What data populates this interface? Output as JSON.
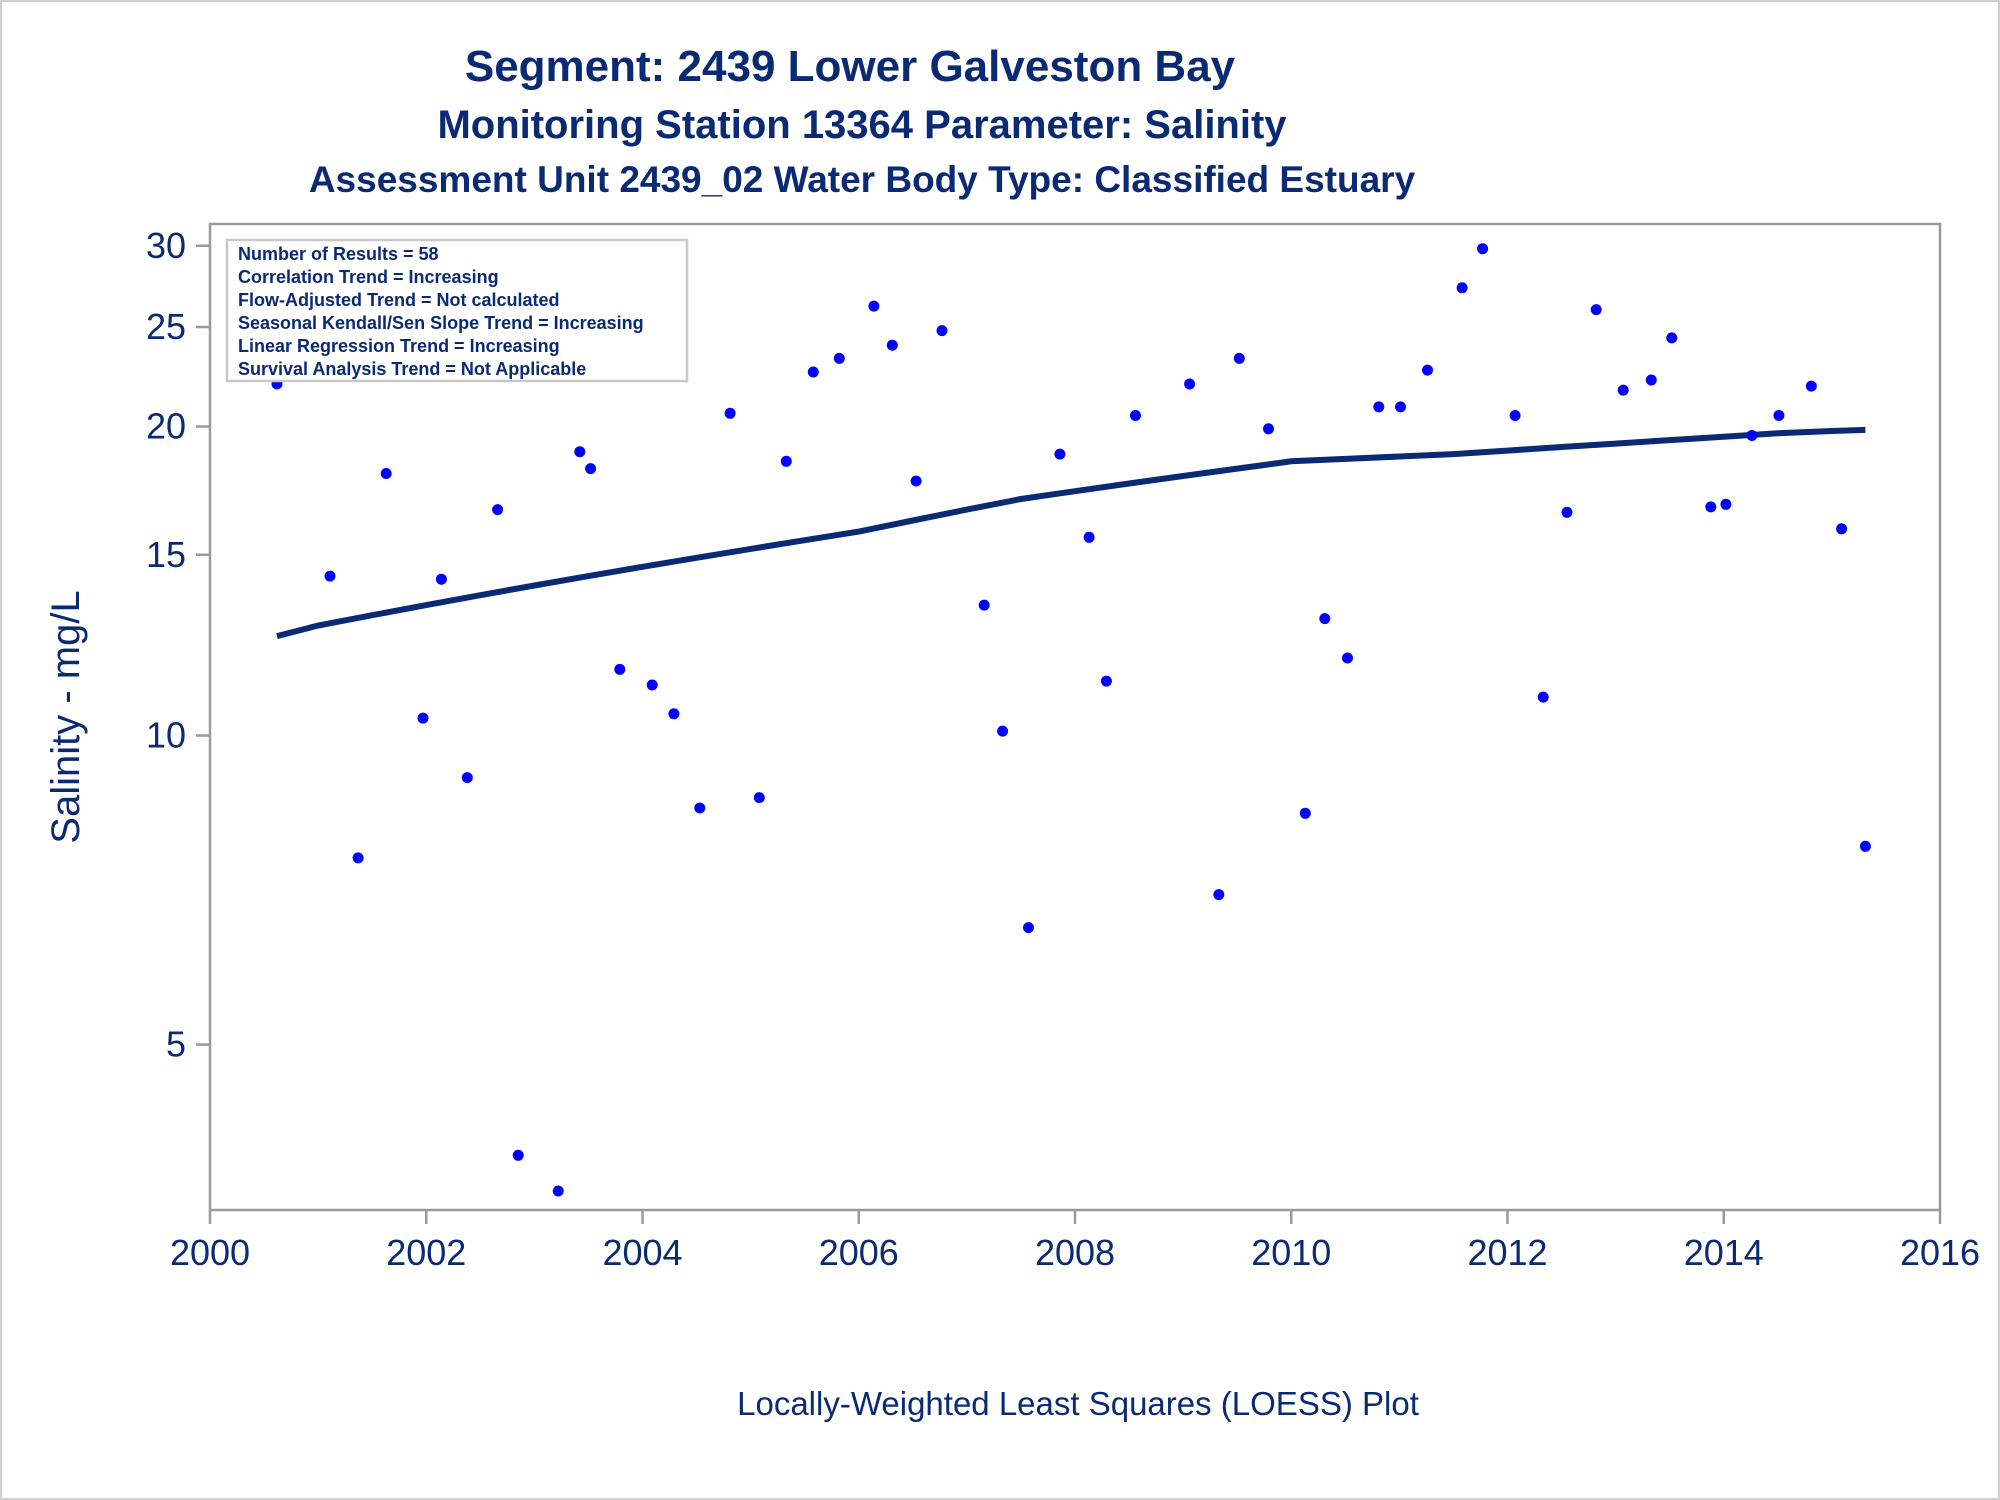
{
  "titles": {
    "line1": "Segment: 2439  Lower Galveston Bay",
    "line2": "Monitoring Station 13364 Parameter: Salinity",
    "line3": "Assessment Unit 2439_02   Water Body Type: Classified Estuary"
  },
  "stats_box": [
    "Number of Results = 58",
    "Correlation Trend = Increasing",
    "Flow-Adjusted Trend = Not calculated",
    "Seasonal Kendall/Sen Slope Trend = Increasing",
    "Linear Regression Trend = Increasing",
    "Survival Analysis Trend = Not Applicable"
  ],
  "footnote": "Locally-Weighted Least Squares (LOESS) Plot",
  "colors": {
    "points": "#0000ff",
    "loess_line": "#0a2a73",
    "text": "#0a2a73",
    "frame": "#9a9a9a"
  },
  "chart_data": {
    "type": "scatter",
    "title": "Segment: 2439  Lower Galveston Bay",
    "subtitle": "Monitoring Station 13364 Parameter: Salinity",
    "xlabel": "",
    "ylabel": "Salinity - mg/L",
    "y_scale": "log",
    "xlim": [
      2000,
      2016
    ],
    "ylim": [
      3.45,
      31.5
    ],
    "x_ticks": [
      2000,
      2002,
      2004,
      2006,
      2008,
      2010,
      2012,
      2014,
      2016
    ],
    "y_ticks": [
      5,
      10,
      15,
      20,
      25,
      30
    ],
    "grid": false,
    "series": [
      {
        "kind": "points",
        "x": [
          2000.62,
          2001.11,
          2001.37,
          2001.63,
          2001.97,
          2002.14,
          2002.38,
          2002.66,
          2002.85,
          2003.22,
          2003.42,
          2003.52,
          2003.79,
          2004.09,
          2004.29,
          2004.53,
          2004.81,
          2005.08,
          2005.33,
          2005.58,
          2005.82,
          2006.14,
          2006.31,
          2006.53,
          2006.77,
          2007.16,
          2007.33,
          2007.57,
          2007.86,
          2008.13,
          2008.29,
          2008.56,
          2009.06,
          2009.33,
          2009.52,
          2009.79,
          2010.13,
          2010.31,
          2010.52,
          2010.81,
          2011.01,
          2011.26,
          2011.58,
          2011.77,
          2012.07,
          2012.33,
          2012.55,
          2012.82,
          2013.07,
          2013.33,
          2013.52,
          2013.88,
          2014.02,
          2014.26,
          2014.51,
          2014.81,
          2015.09,
          2015.31
        ],
        "y": [
          22.0,
          14.3,
          7.6,
          18.0,
          10.4,
          14.2,
          9.1,
          16.6,
          3.9,
          3.6,
          18.9,
          18.2,
          11.6,
          11.2,
          10.5,
          8.5,
          20.6,
          8.7,
          18.5,
          22.6,
          23.3,
          26.2,
          24.0,
          17.7,
          24.8,
          13.4,
          10.1,
          6.5,
          18.8,
          15.6,
          11.3,
          20.5,
          22.0,
          7.0,
          23.3,
          19.9,
          8.4,
          13.0,
          11.9,
          20.9,
          20.9,
          22.7,
          27.3,
          29.8,
          20.5,
          10.9,
          16.5,
          26.0,
          21.7,
          22.2,
          24.4,
          16.7,
          16.8,
          19.6,
          20.5,
          21.9,
          15.9,
          7.8
        ]
      },
      {
        "kind": "loess",
        "x": [
          2000.62,
          2001.0,
          2001.5,
          2002.0,
          2002.5,
          2003.0,
          2003.5,
          2004.0,
          2004.5,
          2005.0,
          2005.5,
          2006.0,
          2006.5,
          2007.0,
          2007.5,
          2008.0,
          2008.5,
          2009.0,
          2009.5,
          2010.0,
          2010.5,
          2011.0,
          2011.5,
          2012.0,
          2012.5,
          2013.0,
          2013.5,
          2014.0,
          2014.5,
          2015.0,
          2015.31
        ],
        "y": [
          12.5,
          12.8,
          13.1,
          13.4,
          13.7,
          14.0,
          14.3,
          14.6,
          14.9,
          15.2,
          15.5,
          15.8,
          16.2,
          16.6,
          17.0,
          17.3,
          17.6,
          17.9,
          18.2,
          18.5,
          18.6,
          18.7,
          18.8,
          18.95,
          19.1,
          19.25,
          19.4,
          19.55,
          19.7,
          19.8,
          19.85
        ]
      }
    ]
  }
}
